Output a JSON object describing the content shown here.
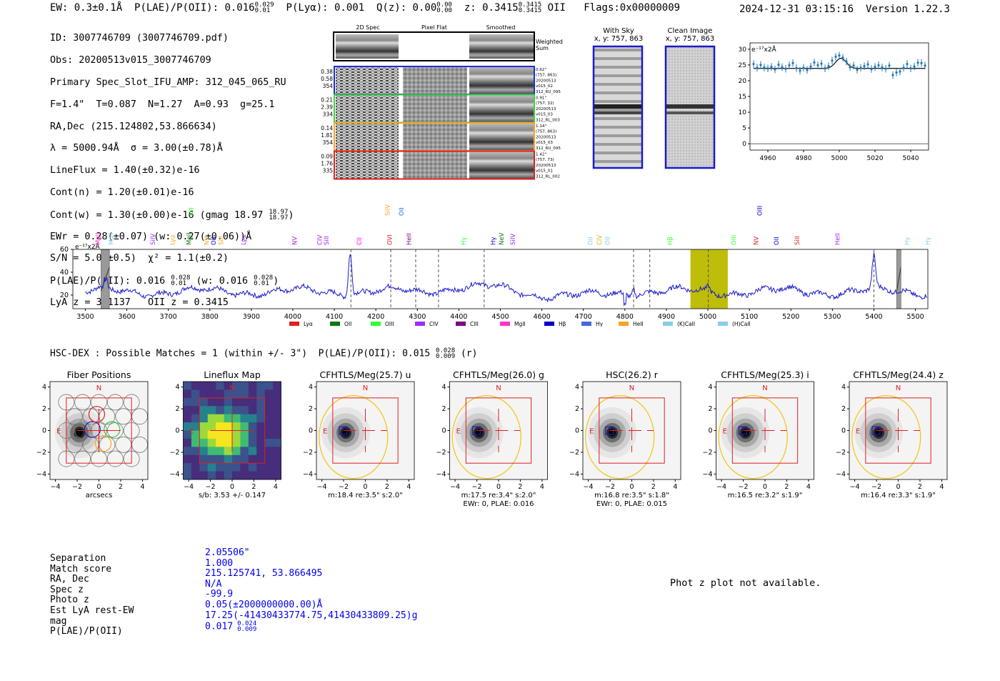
{
  "header": {
    "ew": "EW: 0.3±0.1Å",
    "plae_label": "P(LAE)/P(OII): 0.016",
    "plae_sup": "0.029",
    "plae_sub": "0.01",
    "plya": "P(Lyα): 0.001",
    "qz_label": "Q(z): 0.00",
    "qz_sup": "0.00",
    "qz_sub": "0.00",
    "z_label": "z: 0.3415",
    "z_sup": "0.3415",
    "z_sub": "0.3415",
    "z_line": "OII",
    "flags": "Flags:0x00000009",
    "datetime": "2024-12-31 03:15:16",
    "version": "Version 1.22.3"
  },
  "info": {
    "id": "ID: 3007746709 (3007746709.pdf)",
    "obs": "Obs: 20200513v015_3007746709",
    "primary": "Primary Spec_Slot_IFU_AMP: 312_045_065_RU",
    "fwhm": "F=1.4\"  T=0.087  N=1.27  A=0.93  g=25.1",
    "radec": "RA,Dec (215.124802,53.866634)",
    "lambda": "λ = 5000.94Å  σ = 3.00(±0.78)Å",
    "lineflux": "LineFlux = 1.40(±0.32)e-16",
    "contn": "Cont(n) = 1.20(±0.01)e-16",
    "contw": "Cont(w) = 1.30(±0.00)e-16 (gmag 18.97",
    "contw_sup": "18.97",
    "contw_sub": "18.97",
    "ewr": "EWr = 0.28(±0.07) (w: 0.27(±0.06))Å",
    "sn": "S/N = 5.0(±0.5)  χ² = 1.1(±0.2)",
    "plae": "P(LAE)/P(OII): 0.016",
    "plae_sup": "0.028",
    "plae_sub": "0.01",
    "plae_w": "(w: 0.016",
    "plae_w_sup": "0.028",
    "plae_w_sub": "0.01",
    "lya": "LyA z = 3.1137   OII z = 0.3415"
  },
  "cutouts": {
    "col_2d": "2D Spec",
    "col_flat": "Pixel Flat",
    "col_smooth": "Smoothed",
    "weighted": "Weighted",
    "sum": "Sum",
    "rows": [
      {
        "color": "#1f2dd6",
        "l1": "0.38",
        "l2": "0.58",
        "l3": "354",
        "r1": "0.62\"",
        "r2": "(757, 863)",
        "r3": "20200513",
        "r4": "v015_02",
        "r5": "312_RU_095"
      },
      {
        "color": "#3fd13f",
        "l1": "0.21",
        "l2": "2.39",
        "l3": "334",
        "r1": "0.91\"",
        "r2": "(757, 32)",
        "r3": "20200513",
        "r4": "v015_03",
        "r5": "312_RL_003"
      },
      {
        "color": "#f5a623",
        "l1": "0.14",
        "l2": "1.81",
        "l3": "354",
        "r1": "1.14\"",
        "r2": "(757, 863)",
        "r3": "20200513",
        "r4": "v015_03",
        "r5": "312_RU_095"
      },
      {
        "color": "#e02020",
        "l1": "0.09",
        "l2": "1.76",
        "l3": "335",
        "r1": "1.42\"",
        "r2": "(757, 73)",
        "r3": "20200513",
        "r4": "v015_01",
        "r5": "312_RL_002"
      }
    ],
    "with_sky": "With Sky",
    "with_sky_xy": "x, y: 757, 863",
    "clean": "Clean Image",
    "clean_xy": "x, y: 757, 863"
  },
  "chart_data": [
    {
      "id": "fit",
      "type": "scatter",
      "title": "",
      "ylabel": "e⁻¹⁷x2Å",
      "xlim": [
        4950,
        5050
      ],
      "ylim": [
        -2,
        32
      ],
      "xticks": [
        4960,
        4980,
        5000,
        5020,
        5040
      ],
      "yticks": [
        0,
        5,
        10,
        15,
        20,
        25,
        30
      ],
      "x": [
        4952,
        4954,
        4956,
        4958,
        4960,
        4962,
        4964,
        4966,
        4968,
        4970,
        4972,
        4974,
        4976,
        4978,
        4980,
        4982,
        4984,
        4986,
        4988,
        4990,
        4992,
        4994,
        4996,
        4998,
        5000,
        5002,
        5004,
        5006,
        5008,
        5010,
        5012,
        5014,
        5016,
        5018,
        5020,
        5022,
        5024,
        5026,
        5028,
        5030,
        5032,
        5034,
        5036,
        5038,
        5040,
        5042,
        5044,
        5046,
        5048
      ],
      "y": [
        25.3,
        24.1,
        25.0,
        24.2,
        23.9,
        24.4,
        23.6,
        25.1,
        24.3,
        23.8,
        24.9,
        25.6,
        24.0,
        23.2,
        24.1,
        23.4,
        24.5,
        25.8,
        24.9,
        25.4,
        23.9,
        24.6,
        26.4,
        27.6,
        28.0,
        27.3,
        26.1,
        24.3,
        24.8,
        23.5,
        24.1,
        24.6,
        25.2,
        23.7,
        24.4,
        24.9,
        24.2,
        23.8,
        24.8,
        21.8,
        22.6,
        22.9,
        24.1,
        25.3,
        23.9,
        24.5,
        25.7,
        25.6,
        24.8
      ],
      "model_baseline": 23.9,
      "model_peak": 3.2,
      "model_center": 5000.9,
      "model_sigma": 3.0
    },
    {
      "id": "spectrum",
      "type": "line",
      "ylabel": "e⁻¹⁷x2Å",
      "xlim": [
        3470,
        5530
      ],
      "ylim": [
        8,
        60
      ],
      "xticks": [
        3500,
        3600,
        3700,
        3800,
        3900,
        4000,
        4100,
        4200,
        4300,
        4400,
        4500,
        4600,
        4700,
        4800,
        4900,
        5000,
        5100,
        5200,
        5300,
        5400,
        5500
      ],
      "yticks": [
        20,
        40,
        60
      ],
      "baseline": 23,
      "emission": [
        {
          "x": 4138,
          "amp": 38,
          "w": 4
        },
        {
          "x": 4821,
          "amp": 7,
          "w": 3
        },
        {
          "x": 5400,
          "amp": 28,
          "w": 4
        },
        {
          "x": 5001,
          "amp": 4,
          "w": 3
        }
      ],
      "dashed_lines": [
        4140,
        4236,
        4296,
        4351,
        4461,
        4821,
        4860,
        5001,
        5400
      ],
      "highlight": [
        4958,
        5048
      ],
      "gray_bars": [
        [
          3538,
          3558
        ],
        [
          5455,
          5465
        ]
      ],
      "line_labels": [
        {
          "t": "MgII",
          "x": 3530,
          "c": "#ff33cc",
          "row": 1
        },
        {
          "t": "MgII",
          "x": 3562,
          "c": "#87ceeb",
          "row": 1
        },
        {
          "t": "SiIV",
          "x": 3663,
          "c": "#9b30ff",
          "row": 0
        },
        {
          "t": "Lyα",
          "x": 3710,
          "c": "#f5a623",
          "row": 0
        },
        {
          "t": "MgII",
          "x": 3750,
          "c": "#0b7a0b",
          "row": 0
        },
        {
          "t": "OII",
          "x": 3755,
          "c": "#33ff33",
          "row": 2
        },
        {
          "t": "NV",
          "x": 3793,
          "c": "#f5a623",
          "row": 0
        },
        {
          "t": "SiII",
          "x": 3827,
          "c": "#f5a623",
          "row": 0
        },
        {
          "t": "OII",
          "x": 3809,
          "c": "#0000cc",
          "row": 0
        },
        {
          "t": "Lyα",
          "x": 3881,
          "c": "#a020f0",
          "row": 0
        },
        {
          "t": "NV",
          "x": 4004,
          "c": "#a020f0",
          "row": 0
        },
        {
          "t": "CIV",
          "x": 4065,
          "c": "#a020f0",
          "row": 0
        },
        {
          "t": "SiII",
          "x": 4081,
          "c": "#a020f0",
          "row": 0
        },
        {
          "t": "CII",
          "x": 4160,
          "c": "#ff00ff",
          "row": 0
        },
        {
          "t": "SiIV",
          "x": 4228,
          "c": "#f5a623",
          "row": 2
        },
        {
          "t": "OVI",
          "x": 4233,
          "c": "#e02020",
          "row": 0
        },
        {
          "t": "OII",
          "x": 4262,
          "c": "#1f6fd6",
          "row": 2
        },
        {
          "t": "HeII",
          "x": 4280,
          "c": "#800080",
          "row": 0
        },
        {
          "t": "Hγ",
          "x": 4411,
          "c": "#33ff33",
          "row": 0
        },
        {
          "t": "Hγ",
          "x": 4483,
          "c": "#0000cc",
          "row": 0
        },
        {
          "t": "NeV",
          "x": 4503,
          "c": "#0b7a0b",
          "row": 0
        },
        {
          "t": "SiIV",
          "x": 4530,
          "c": "#a020f0",
          "row": 0
        },
        {
          "t": "OII",
          "x": 4717,
          "c": "#87ceeb",
          "row": 0
        },
        {
          "t": "CIV",
          "x": 4738,
          "c": "#f5a623",
          "row": 0
        },
        {
          "t": "OII",
          "x": 4758,
          "c": "#87ceeb",
          "row": 0
        },
        {
          "t": "Hβ",
          "x": 4909,
          "c": "#33ff33",
          "row": 0
        },
        {
          "t": "OIII",
          "x": 5062,
          "c": "#33ff33",
          "row": 0
        },
        {
          "t": "NV",
          "x": 5116,
          "c": "#e02020",
          "row": 0
        },
        {
          "t": "OIII",
          "x": 5125,
          "c": "#0000cc",
          "row": 2
        },
        {
          "t": "OII",
          "x": 5165,
          "c": "#0000cc",
          "row": 0
        },
        {
          "t": "SiII",
          "x": 5215,
          "c": "#e02020",
          "row": 0
        },
        {
          "t": "HeII",
          "x": 5312,
          "c": "#a020f0",
          "row": 0
        },
        {
          "t": "Hγ",
          "x": 5480,
          "c": "#87ceeb",
          "row": 0
        },
        {
          "t": "Hγ",
          "x": 5530,
          "c": "#87ceeb",
          "row": 0
        }
      ],
      "legend": [
        {
          "label": "Lyα",
          "color": "#e02020"
        },
        {
          "label": "OII",
          "color": "#0b7a0b"
        },
        {
          "label": "OIII",
          "color": "#33ff33"
        },
        {
          "label": "CIV",
          "color": "#9b30ff"
        },
        {
          "label": "CIII",
          "color": "#800080"
        },
        {
          "label": "MgII",
          "color": "#ff33cc"
        },
        {
          "label": "Hβ",
          "color": "#0000cc"
        },
        {
          "label": "Hγ",
          "color": "#4169e1"
        },
        {
          "label": "HeII",
          "color": "#f5a623"
        },
        {
          "label": "(K)CaII",
          "color": "#87ceeb"
        },
        {
          "label": "(H)CaII",
          "color": "#87ceeb"
        }
      ]
    }
  ],
  "hsc": {
    "title": "HSC-DEX : Possible Matches = 1 (within +/- 3\")  P(LAE)/P(OII): 0.015",
    "sup": "0.028",
    "sub": "0.009",
    "band": "(r)"
  },
  "image_panels": [
    {
      "title": "Fiber Positions",
      "l1": "arcsecs",
      "l2": ""
    },
    {
      "title": "Lineflux Map",
      "l1": "s/b: 3.53 +/- 0.147",
      "l2": ""
    },
    {
      "title": "CFHTLS/Meg(25.7) u",
      "l1": "m:18.4  re:3.5\"  s:2.0\"",
      "l2": ""
    },
    {
      "title": "CFHTLS/Meg(26.0) g",
      "l1": "m:17.5  re:3.4\"  s:2.0\"",
      "l2": "EWr: 0, PLAE: 0.016"
    },
    {
      "title": "HSC(26.2) r",
      "l1": "m:16.8  re:3.5\"  s:1.8\"",
      "l2": "EWr: 0, PLAE: 0.015"
    },
    {
      "title": "CFHTLS/Meg(25.3) i",
      "l1": "m:16.5  re:3.2\"  s:1.9\"",
      "l2": ""
    },
    {
      "title": "CFHTLS/Meg(24.4) z",
      "l1": "m:16.4  re:3.3\"  s:1.9\"",
      "l2": ""
    }
  ],
  "panel_axis": {
    "ticks": [
      -4,
      -2,
      0,
      2,
      4
    ],
    "n": "N",
    "e": "E"
  },
  "match": {
    "labels": [
      "Separation",
      "Match score",
      "RA, Dec",
      "Spec z",
      "Photo z",
      "Est LyA rest-EW",
      "mag",
      "P(LAE)/P(OII)"
    ],
    "values": [
      "2.05506\"",
      "1.000",
      "215.125741, 53.866495",
      "N/A",
      "-99.9",
      "0.05(±2000000000.00)Å",
      "17.25(-41430433774.75,41430433809.25)g",
      "0.017"
    ],
    "plae_sup": "0.024",
    "plae_sub": "0.009"
  },
  "photz": "Phot z plot not available."
}
